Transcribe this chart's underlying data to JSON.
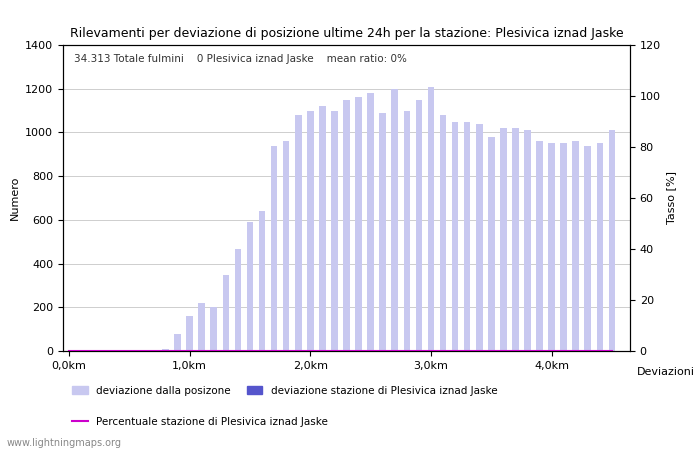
{
  "title": "Rilevamenti per deviazione di posizione ultime 24h per la stazione: Plesivica iznad Jaske",
  "subtitle": "34.313 Totale fulmini    0 Plesivica iznad Jaske    mean ratio: 0%",
  "ylabel_left": "Numero",
  "ylabel_right": "Tasso [%]",
  "xlabel_bottom": "Deviazioni",
  "watermark": "www.lightningmaps.org",
  "ylim_left": [
    0,
    1400
  ],
  "ylim_right": [
    0,
    120
  ],
  "yticks_left": [
    0,
    200,
    400,
    600,
    800,
    1000,
    1200,
    1400
  ],
  "yticks_right": [
    0,
    20,
    40,
    60,
    80,
    100,
    120
  ],
  "bar_width": 0.055,
  "bar_color": "#c8c8f0",
  "bar_color_station": "#5555cc",
  "line_color": "#cc00cc",
  "background_color": "#ffffff",
  "grid_color": "#bbbbbb",
  "x_values": [
    0.0,
    0.1,
    0.2,
    0.3,
    0.4,
    0.5,
    0.6,
    0.7,
    0.8,
    0.9,
    1.0,
    1.1,
    1.2,
    1.3,
    1.4,
    1.5,
    1.6,
    1.7,
    1.8,
    1.9,
    2.0,
    2.1,
    2.2,
    2.3,
    2.4,
    2.5,
    2.6,
    2.7,
    2.8,
    2.9,
    3.0,
    3.1,
    3.2,
    3.3,
    3.4,
    3.5,
    3.6,
    3.7,
    3.8,
    3.9,
    4.0,
    4.1,
    4.2,
    4.3,
    4.4,
    4.5
  ],
  "bar_heights": [
    0,
    0,
    0,
    0,
    0,
    0,
    0,
    5,
    10,
    80,
    160,
    220,
    200,
    350,
    465,
    590,
    640,
    940,
    960,
    1080,
    1100,
    1120,
    1100,
    1150,
    1160,
    1180,
    1090,
    1200,
    1100,
    1150,
    1210,
    1080,
    1050,
    1050,
    1040,
    980,
    1020,
    1020,
    1010,
    960,
    950,
    950,
    960,
    940,
    950,
    1010
  ],
  "station_heights": [
    0,
    0,
    0,
    0,
    0,
    0,
    0,
    0,
    0,
    0,
    0,
    0,
    0,
    0,
    0,
    0,
    0,
    0,
    0,
    0,
    0,
    0,
    0,
    0,
    0,
    0,
    0,
    0,
    0,
    0,
    0,
    0,
    0,
    0,
    0,
    0,
    0,
    0,
    0,
    0,
    0,
    0,
    0,
    0,
    0,
    0
  ],
  "ratio_values": [
    0,
    0,
    0,
    0,
    0,
    0,
    0,
    0,
    0,
    0,
    0,
    0,
    0,
    0,
    0,
    0,
    0,
    0,
    0,
    0,
    0,
    0,
    0,
    0,
    0,
    0,
    0,
    0,
    0,
    0,
    0,
    0,
    0,
    0,
    0,
    0,
    0,
    0,
    0,
    0,
    0,
    0,
    0,
    0,
    0,
    0
  ],
  "xtick_positions": [
    0.0,
    1.0,
    2.0,
    3.0,
    4.0
  ],
  "xtick_labels": [
    "0,0km",
    "1,0km",
    "2,0km",
    "3,0km",
    "4,0km"
  ],
  "xlim": [
    -0.05,
    4.65
  ],
  "legend_items": [
    {
      "label": "deviazione dalla posizone",
      "color": "#c8c8f0",
      "type": "bar"
    },
    {
      "label": "deviazione stazione di Plesivica iznad Jaske",
      "color": "#5555cc",
      "type": "bar"
    },
    {
      "label": "Percentuale stazione di Plesivica iznad Jaske",
      "color": "#cc00cc",
      "type": "line"
    }
  ]
}
